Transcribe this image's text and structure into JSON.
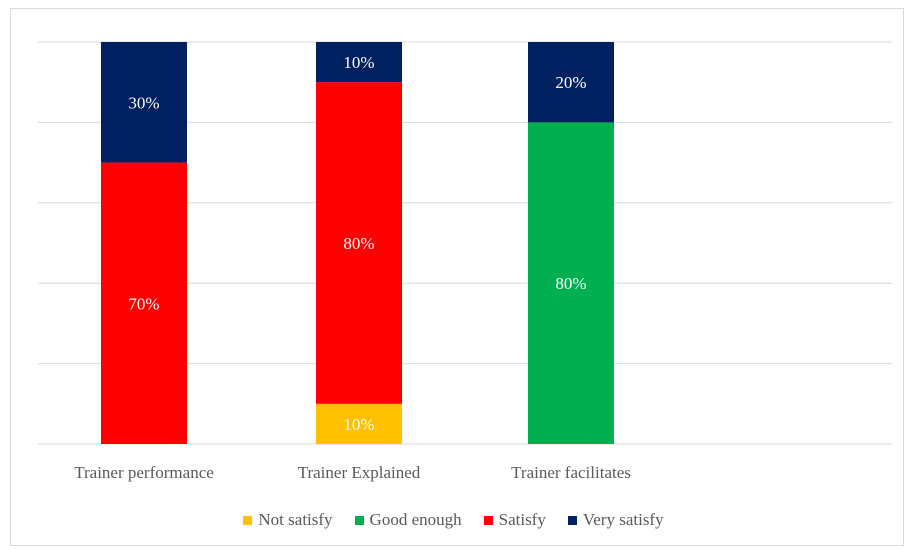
{
  "chart_data": {
    "type": "bar",
    "stacked": true,
    "categories": [
      "Trainer performance",
      "Trainer Explained",
      "Trainer facilitates"
    ],
    "series": [
      {
        "name": "Not satisfy",
        "color": "#ffc000",
        "values": [
          0,
          10,
          0
        ]
      },
      {
        "name": "Good enough",
        "color": "#00b050",
        "values": [
          0,
          0,
          80
        ]
      },
      {
        "name": "Satisfy",
        "color": "#ff0000",
        "values": [
          70,
          80,
          0
        ]
      },
      {
        "name": "Very satisfy",
        "color": "#002060",
        "values": [
          30,
          10,
          20
        ]
      }
    ],
    "value_suffix": "%",
    "ylim": [
      0,
      100
    ],
    "grid": true,
    "legend_position": "bottom"
  }
}
